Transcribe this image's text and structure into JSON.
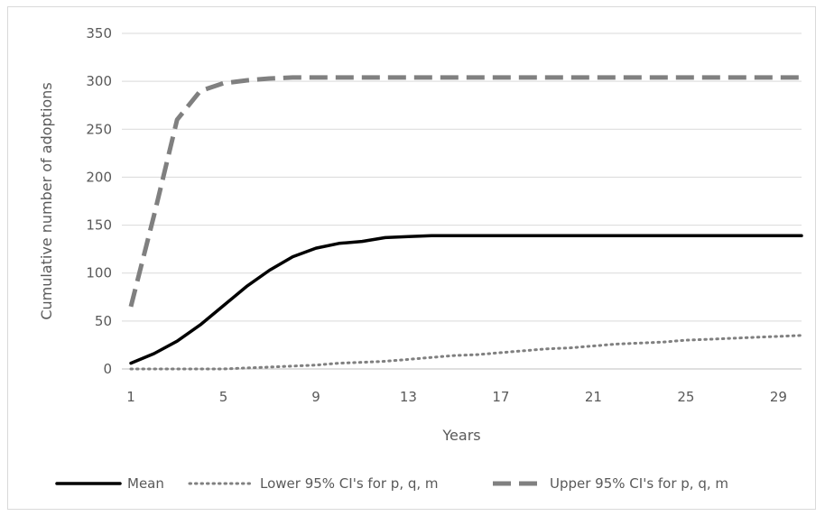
{
  "chart_data": {
    "type": "line",
    "title": "",
    "xlabel": "Years",
    "ylabel": "Cumulative number of adoptions",
    "x": [
      1,
      2,
      3,
      4,
      5,
      6,
      7,
      8,
      9,
      10,
      11,
      12,
      13,
      14,
      15,
      16,
      17,
      18,
      19,
      20,
      21,
      22,
      23,
      24,
      25,
      26,
      27,
      28,
      29,
      30
    ],
    "x_ticks": [
      1,
      5,
      9,
      13,
      17,
      21,
      25,
      29
    ],
    "y_ticks": [
      0,
      50,
      100,
      150,
      200,
      250,
      300,
      350
    ],
    "ylim": [
      0,
      350
    ],
    "grid": "horizontal",
    "legend_position": "bottom",
    "series": [
      {
        "name": "Mean",
        "style": "solid",
        "color": "#000000",
        "values": [
          6,
          16,
          29,
          46,
          66,
          86,
          103,
          117,
          126,
          131,
          133,
          137,
          138,
          139,
          139,
          139,
          139,
          139,
          139,
          139,
          139,
          139,
          139,
          139,
          139,
          139,
          139,
          139,
          139,
          139
        ]
      },
      {
        "name": "Lower 95% CI's for p, q, m",
        "style": "dotted",
        "color": "#808080",
        "values": [
          0,
          0,
          0,
          0,
          0,
          1,
          2,
          3,
          4,
          6,
          7,
          8,
          10,
          12,
          14,
          15,
          17,
          19,
          21,
          22,
          24,
          26,
          27,
          28,
          30,
          31,
          32,
          33,
          34,
          35
        ]
      },
      {
        "name": "Upper 95% CI's for p, q, m",
        "style": "dashed",
        "color": "#808080",
        "values": [
          65,
          160,
          260,
          290,
          298,
          301,
          303,
          304,
          304,
          304,
          304,
          304,
          304,
          304,
          304,
          304,
          304,
          304,
          304,
          304,
          304,
          304,
          304,
          304,
          304,
          304,
          304,
          304,
          304,
          304
        ]
      }
    ]
  }
}
